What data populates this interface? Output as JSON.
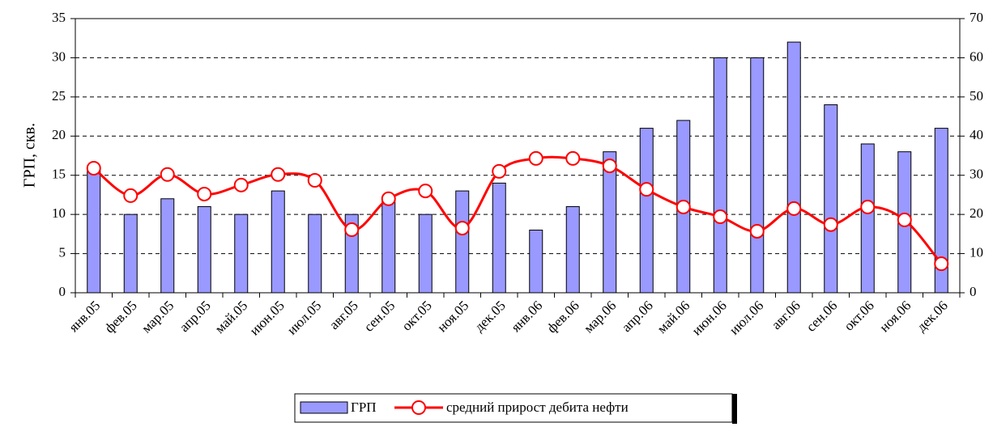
{
  "chart_data": {
    "type": "bar_line",
    "ylabel": "ГРП, скв.",
    "categories": [
      "янв.05",
      "фев.05",
      "мар.05",
      "апр.05",
      "май.05",
      "июн.05",
      "июл.05",
      "авг.05",
      "сен.05",
      "окт.05",
      "ноя.05",
      "дек.05",
      "янв.06",
      "фев.06",
      "мар.06",
      "апр.06",
      "май.06",
      "июн.06",
      "июл.06",
      "авг.06",
      "сен.06",
      "окт.06",
      "ноя.06",
      "дек.06"
    ],
    "series": [
      {
        "name": "ГРП",
        "color": "#9999ff",
        "type": "bar",
        "values": [
          16,
          10,
          12,
          11,
          10,
          13,
          10,
          10,
          12,
          10,
          13,
          14,
          8,
          11,
          18,
          21,
          22,
          30,
          30,
          32,
          24,
          19,
          18,
          21
        ]
      },
      {
        "name": "средний прирост дебита нефти",
        "color": "#ff0000",
        "type": "line",
        "axis": "y2",
        "values": [
          31.8,
          24.8,
          30.2,
          25.2,
          27.5,
          30.2,
          28.7,
          16.1,
          24,
          26,
          16.5,
          31,
          34.3,
          34.3,
          32.4,
          26.4,
          21.9,
          19.4,
          15.7,
          21.5,
          17.4,
          21.9,
          18.6,
          7.4
        ]
      }
    ],
    "ylim": [
      0,
      35
    ],
    "yticks": [
      0,
      5,
      10,
      15,
      20,
      25,
      30,
      35
    ],
    "y2lim": [
      0,
      70
    ],
    "y2ticks": [
      0,
      10,
      20,
      30,
      40,
      50,
      60,
      70
    ],
    "grid": true,
    "legend": "bottom"
  }
}
